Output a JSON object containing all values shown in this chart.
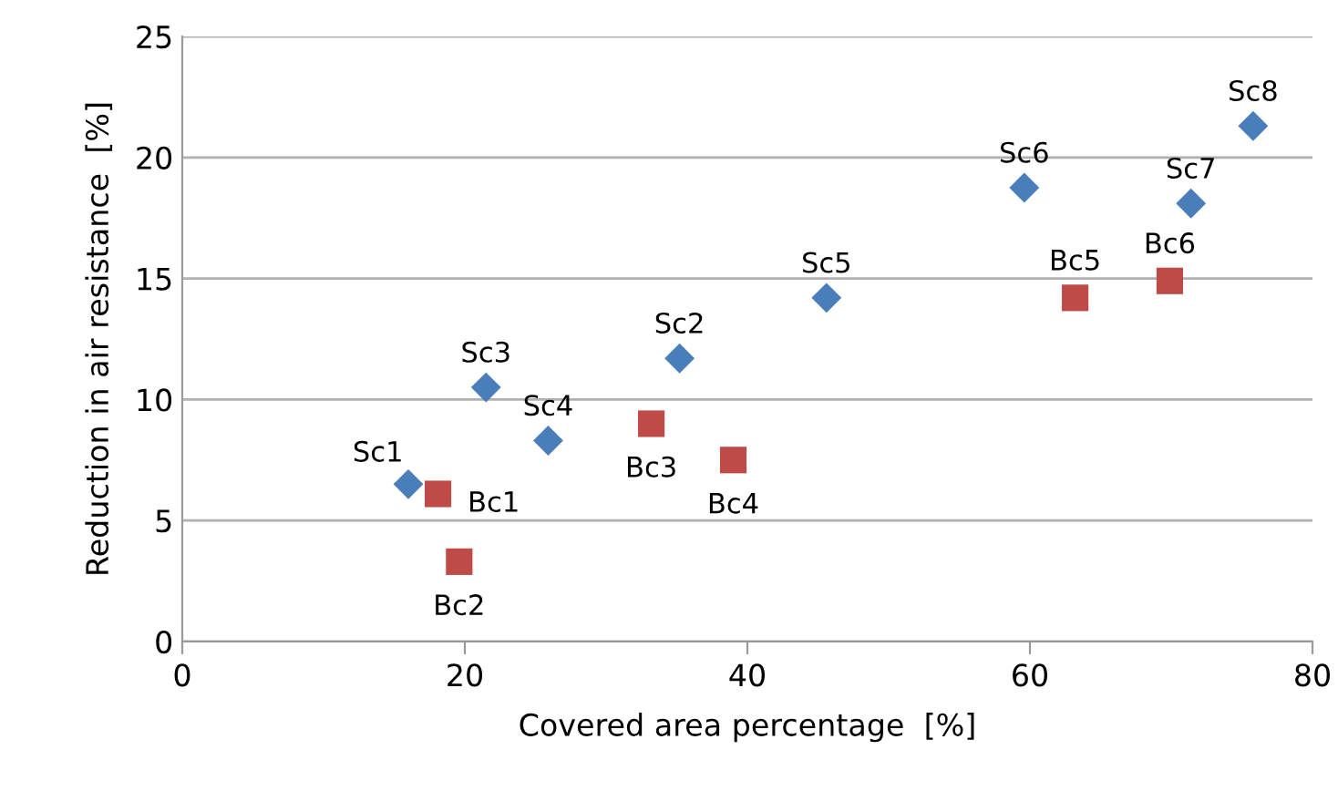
{
  "chart_data": {
    "type": "scatter",
    "xlabel": "Covered area percentage  [%]",
    "ylabel": "Reduction in air resistance  [%]",
    "xlim": [
      0,
      80
    ],
    "xticks": [
      0,
      20,
      40,
      60,
      80
    ],
    "ylim": [
      0,
      25
    ],
    "yticks": [
      0,
      5,
      10,
      15,
      20,
      25
    ],
    "grid": "y",
    "legend": false,
    "series": [
      {
        "color": "#4a7ebb",
        "marker": "diamond",
        "x": [
          16.0,
          35.2,
          21.5,
          25.9,
          45.6,
          59.6,
          71.4,
          75.8
        ],
        "values": [
          6.5,
          11.7,
          10.5,
          8.3,
          14.2,
          18.75,
          18.1,
          21.3
        ]
      },
      {
        "color": "#be4b48",
        "marker": "square",
        "x": [
          18.1,
          19.6,
          33.2,
          39.0,
          63.2,
          69.9
        ],
        "values": [
          6.1,
          3.3,
          9.0,
          7.5,
          14.2,
          14.9
        ]
      }
    ],
    "annotations": [
      {
        "text": "Sc1",
        "x": 16.0,
        "y": 6.5
      },
      {
        "text": "Sc2",
        "x": 35.2,
        "y": 11.7
      },
      {
        "text": "Sc3",
        "x": 21.5,
        "y": 10.5
      },
      {
        "text": "Sc4",
        "x": 25.9,
        "y": 8.3
      },
      {
        "text": "Sc5",
        "x": 45.6,
        "y": 14.2
      },
      {
        "text": "Sc6",
        "x": 59.6,
        "y": 18.75
      },
      {
        "text": "Sc7",
        "x": 71.4,
        "y": 18.1
      },
      {
        "text": "Sc8",
        "x": 75.8,
        "y": 21.3
      },
      {
        "text": "Bc1",
        "x": 18.1,
        "y": 6.1
      },
      {
        "text": "Bc2",
        "x": 19.6,
        "y": 3.3
      },
      {
        "text": "Bc3",
        "x": 33.2,
        "y": 9.0
      },
      {
        "text": "Bc4",
        "x": 39.0,
        "y": 7.5
      },
      {
        "text": "Bc5",
        "x": 63.2,
        "y": 14.2
      },
      {
        "text": "Bc6",
        "x": 69.9,
        "y": 14.9
      }
    ]
  }
}
